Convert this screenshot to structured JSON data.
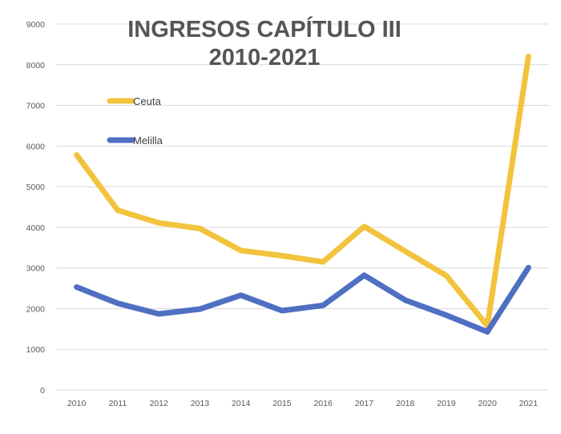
{
  "chart_data": {
    "type": "line",
    "title": "INGRESOS CAPÍTULO III",
    "subtitle": "2010-2021",
    "x": [
      "2010",
      "2011",
      "2012",
      "2013",
      "2014",
      "2015",
      "2016",
      "2017",
      "2018",
      "2019",
      "2020",
      "2021"
    ],
    "series": [
      {
        "name": "Ceuta",
        "color": "#f2c33c",
        "values": [
          5780,
          4420,
          4110,
          3970,
          3430,
          3300,
          3150,
          4020,
          3410,
          2810,
          1580,
          8200
        ]
      },
      {
        "name": "Melilla",
        "color": "#4f6fc2",
        "values": [
          2530,
          2130,
          1870,
          1990,
          2330,
          1950,
          2080,
          2820,
          2210,
          1840,
          1430,
          3010
        ]
      }
    ],
    "ylim": [
      0,
      9000
    ],
    "yticks": [
      "0",
      "1000",
      "2000",
      "3000",
      "4000",
      "5000",
      "6000",
      "7000",
      "8000",
      "9000"
    ],
    "xlabel": "",
    "ylabel": "",
    "grid": true,
    "legend_position": "top-left"
  }
}
